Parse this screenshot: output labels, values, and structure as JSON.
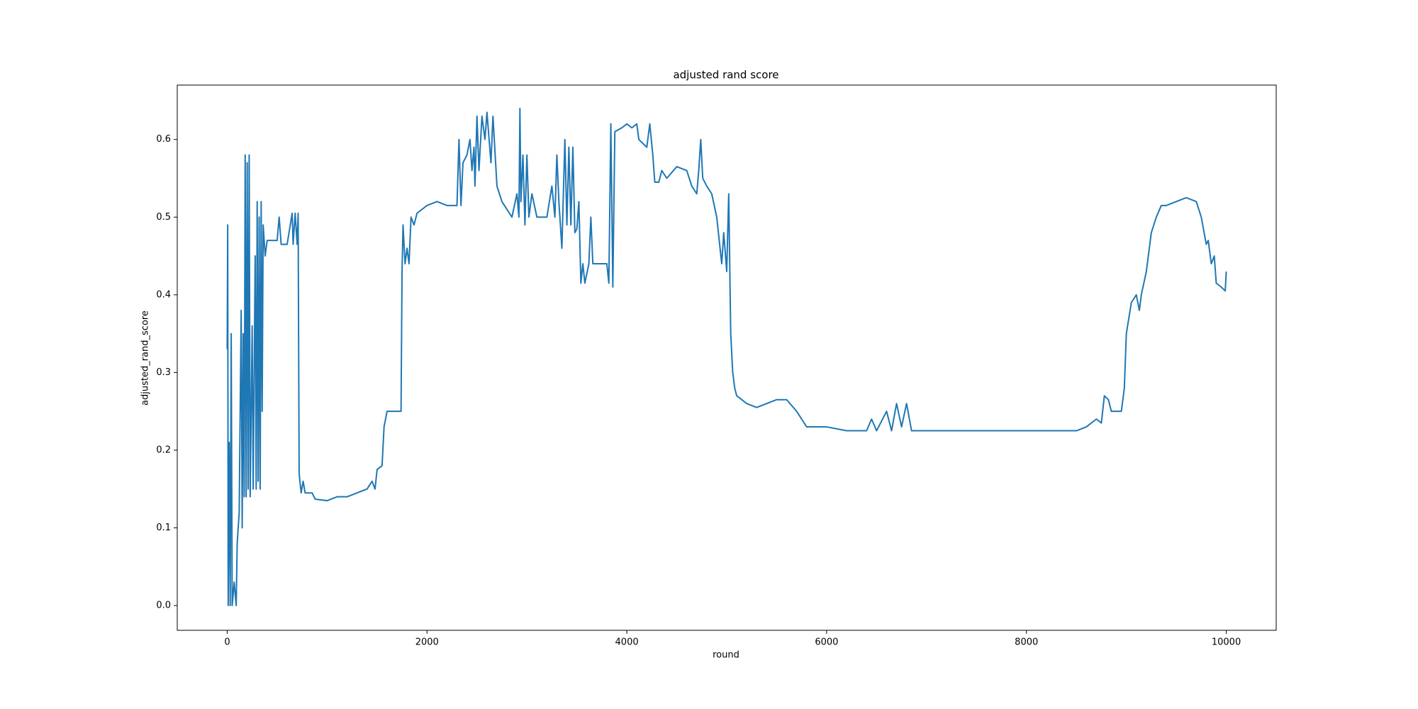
{
  "chart_data": {
    "type": "line",
    "title": "adjusted rand score",
    "x_label": "round",
    "y_label": "adjusted_rand_score",
    "color": "#1f77b4",
    "grid": false,
    "xlim": [
      -500,
      10500
    ],
    "ylim": [
      -0.0319,
      0.67
    ],
    "xticks": [
      0,
      2000,
      4000,
      6000,
      8000,
      10000
    ],
    "yticks": [
      {
        "value": 0,
        "label": "0.0"
      },
      0.1,
      0.2,
      0.3,
      0.4,
      0.5,
      0.6
    ],
    "x": [
      0,
      5,
      10,
      20,
      30,
      40,
      50,
      70,
      90,
      100,
      120,
      140,
      150,
      160,
      170,
      180,
      190,
      200,
      210,
      220,
      230,
      250,
      260,
      280,
      290,
      300,
      310,
      320,
      330,
      340,
      350,
      360,
      380,
      400,
      500,
      520,
      540,
      600,
      650,
      660,
      680,
      700,
      710,
      720,
      740,
      760,
      780,
      850,
      880,
      1000,
      1100,
      1200,
      1300,
      1400,
      1450,
      1480,
      1500,
      1550,
      1570,
      1600,
      1700,
      1740,
      1750,
      1760,
      1780,
      1800,
      1820,
      1840,
      1870,
      1900,
      2000,
      2100,
      2200,
      2300,
      2320,
      2340,
      2360,
      2400,
      2430,
      2450,
      2470,
      2480,
      2500,
      2520,
      2550,
      2580,
      2600,
      2640,
      2660,
      2700,
      2750,
      2800,
      2850,
      2900,
      2920,
      2930,
      2940,
      2960,
      2980,
      3000,
      3020,
      3050,
      3100,
      3200,
      3250,
      3280,
      3300,
      3320,
      3350,
      3380,
      3400,
      3420,
      3440,
      3460,
      3480,
      3500,
      3520,
      3540,
      3560,
      3580,
      3620,
      3640,
      3660,
      3700,
      3800,
      3820,
      3840,
      3860,
      3880,
      3950,
      4000,
      4050,
      4100,
      4120,
      4200,
      4230,
      4260,
      4280,
      4320,
      4350,
      4400,
      4500,
      4600,
      4650,
      4700,
      4720,
      4740,
      4760,
      4800,
      4850,
      4900,
      4950,
      4970,
      5000,
      5020,
      5040,
      5060,
      5080,
      5100,
      5150,
      5200,
      5300,
      5400,
      5500,
      5600,
      5700,
      5750,
      5800,
      6000,
      6200,
      6400,
      6450,
      6500,
      6600,
      6650,
      6700,
      6750,
      6800,
      6850,
      7000,
      8000,
      8500,
      8600,
      8700,
      8750,
      8780,
      8820,
      8850,
      8900,
      8950,
      8980,
      9000,
      9050,
      9100,
      9130,
      9150,
      9200,
      9250,
      9300,
      9350,
      9400,
      9500,
      9600,
      9700,
      9750,
      9800,
      9820,
      9850,
      9880,
      9900,
      9950,
      9990,
      10000
    ],
    "values": [
      0.33,
      0.49,
      0.0,
      0.21,
      0.0,
      0.35,
      0.0,
      0.03,
      0.0,
      0.08,
      0.12,
      0.38,
      0.1,
      0.35,
      0.14,
      0.58,
      0.14,
      0.57,
      0.15,
      0.58,
      0.14,
      0.36,
      0.15,
      0.45,
      0.15,
      0.52,
      0.16,
      0.5,
      0.15,
      0.52,
      0.25,
      0.49,
      0.45,
      0.47,
      0.47,
      0.5,
      0.465,
      0.465,
      0.505,
      0.465,
      0.505,
      0.465,
      0.505,
      0.17,
      0.145,
      0.16,
      0.145,
      0.145,
      0.137,
      0.135,
      0.14,
      0.14,
      0.145,
      0.15,
      0.16,
      0.15,
      0.175,
      0.18,
      0.23,
      0.25,
      0.25,
      0.25,
      0.43,
      0.49,
      0.44,
      0.46,
      0.44,
      0.5,
      0.49,
      0.505,
      0.515,
      0.52,
      0.515,
      0.515,
      0.6,
      0.515,
      0.57,
      0.58,
      0.6,
      0.56,
      0.59,
      0.54,
      0.63,
      0.56,
      0.63,
      0.6,
      0.635,
      0.57,
      0.63,
      0.54,
      0.52,
      0.51,
      0.5,
      0.53,
      0.5,
      0.64,
      0.52,
      0.58,
      0.49,
      0.58,
      0.5,
      0.53,
      0.5,
      0.5,
      0.54,
      0.5,
      0.58,
      0.52,
      0.46,
      0.6,
      0.49,
      0.59,
      0.49,
      0.59,
      0.48,
      0.485,
      0.52,
      0.415,
      0.44,
      0.415,
      0.44,
      0.5,
      0.44,
      0.44,
      0.44,
      0.415,
      0.62,
      0.41,
      0.61,
      0.615,
      0.62,
      0.615,
      0.62,
      0.6,
      0.59,
      0.62,
      0.58,
      0.545,
      0.545,
      0.56,
      0.55,
      0.565,
      0.56,
      0.54,
      0.53,
      0.56,
      0.6,
      0.55,
      0.54,
      0.53,
      0.5,
      0.44,
      0.48,
      0.43,
      0.53,
      0.35,
      0.3,
      0.28,
      0.27,
      0.265,
      0.26,
      0.255,
      0.26,
      0.265,
      0.265,
      0.25,
      0.24,
      0.23,
      0.23,
      0.225,
      0.225,
      0.24,
      0.225,
      0.25,
      0.225,
      0.26,
      0.23,
      0.26,
      0.225,
      0.225,
      0.225,
      0.225,
      0.23,
      0.24,
      0.235,
      0.27,
      0.265,
      0.25,
      0.25,
      0.25,
      0.28,
      0.35,
      0.39,
      0.4,
      0.38,
      0.4,
      0.43,
      0.48,
      0.5,
      0.515,
      0.515,
      0.52,
      0.525,
      0.52,
      0.5,
      0.465,
      0.47,
      0.44,
      0.45,
      0.415,
      0.41,
      0.405,
      0.43
    ]
  }
}
